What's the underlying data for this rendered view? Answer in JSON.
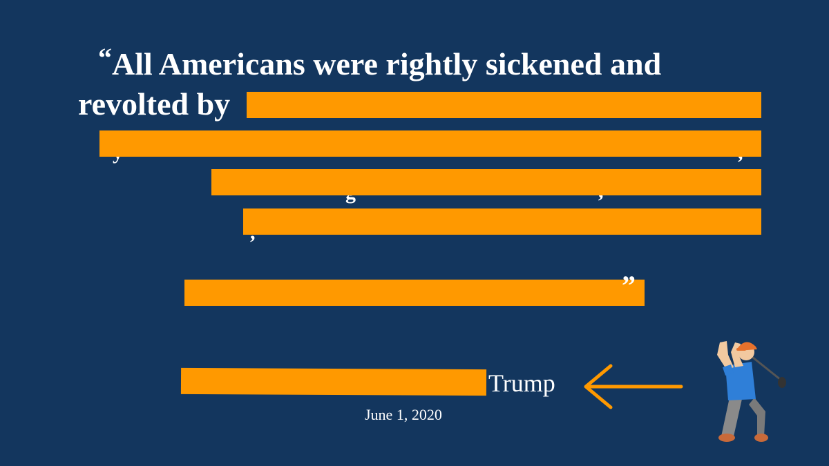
{
  "quote": {
    "open_mark": "“",
    "line1": "All Americans were rightly sickened and",
    "line2_visible": "revolted by",
    "close_mark": "”"
  },
  "attribution": {
    "name_visible": "Trump",
    "date": "June 1, 2020"
  },
  "colors": {
    "background": "#13365e",
    "text": "#ffffff",
    "redaction": "#ff9900"
  },
  "icons": {
    "arrow": "left-arrow-icon",
    "golfer": "golfer-emoji-icon"
  }
}
